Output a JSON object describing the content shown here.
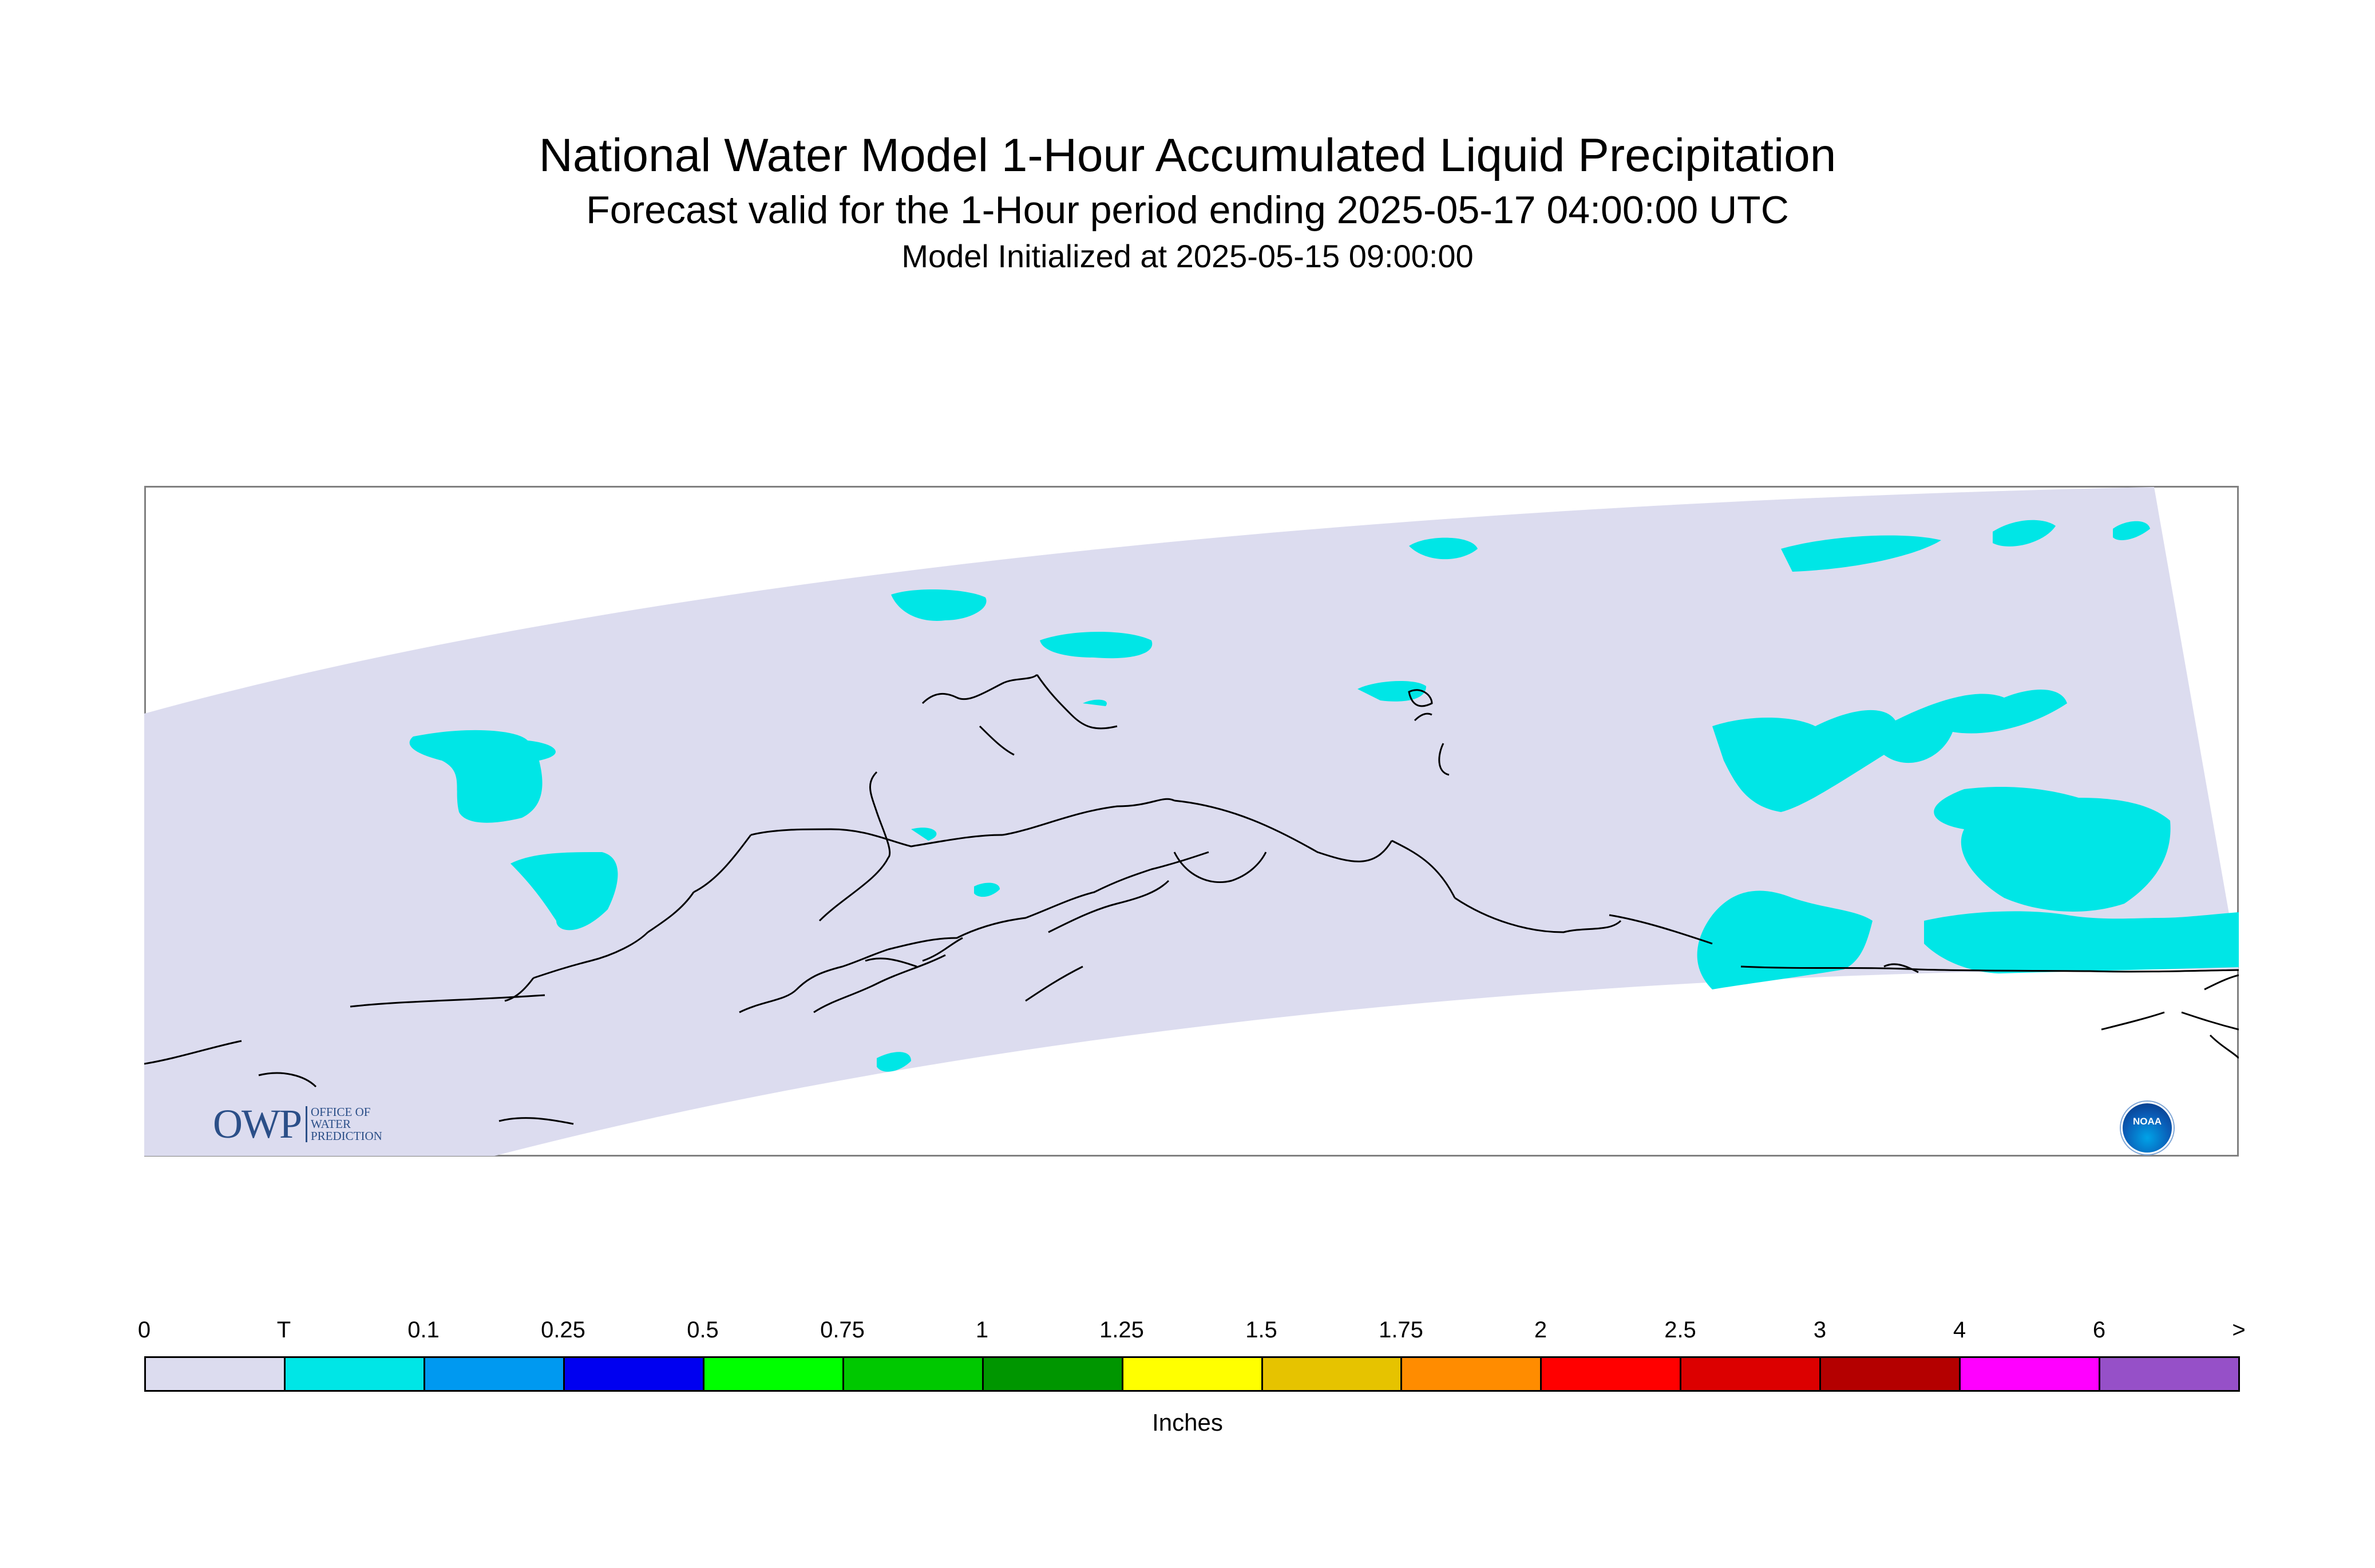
{
  "title": "National Water Model 1-Hour Accumulated Liquid Precipitation",
  "subtitle": "Forecast valid for the 1-Hour period ending 2025-05-17 04:00:00 UTC",
  "initialized": "Model Initialized at 2025-05-15 09:00:00",
  "map": {
    "region": "Alaska",
    "domain_fill_color": "#dcdcef",
    "precip_fill_color": "#00e6e6",
    "coastline_color": "#000000"
  },
  "logos": {
    "owp_letters": "OWP",
    "owp_line1": "OFFICE OF",
    "owp_line2": "WATER",
    "owp_line3": "PREDICTION",
    "noaa": "NOAA"
  },
  "legend": {
    "units": "Inches",
    "tick_labels": [
      "0",
      "T",
      "0.1",
      "0.25",
      "0.5",
      "0.75",
      "1",
      "1.25",
      "1.5",
      "1.75",
      "2",
      "2.5",
      "3",
      "4",
      "6",
      ">"
    ],
    "colors": [
      "#dcdcef",
      "#00e6e6",
      "#0099f0",
      "#0000f0",
      "#00ff00",
      "#00c800",
      "#009600",
      "#ffff00",
      "#e6c300",
      "#ff8c00",
      "#ff0000",
      "#dc0000",
      "#b40000",
      "#ff00ff",
      "#9650c8"
    ]
  }
}
